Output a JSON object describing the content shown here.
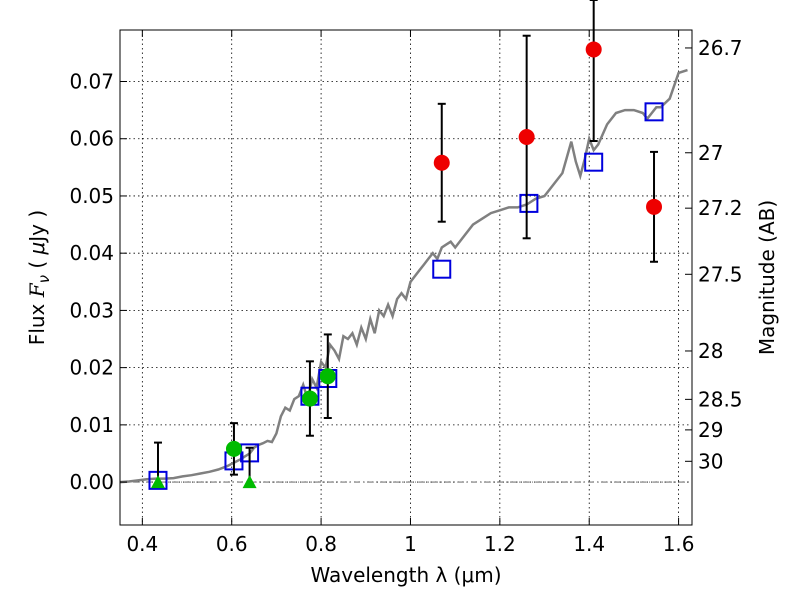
{
  "chart_data": {
    "type": "scatter",
    "xlabel": "Wavelength  λ (μm)",
    "ylabel": "Flux  F_ν  ( μJy )",
    "ylabel_parts": {
      "prefix": "Flux  ",
      "symbol": "F",
      "subscript": "ν",
      "paren_open": "  ( ",
      "mu": "μ",
      "unit": "Jy )"
    },
    "y2label": "Magnitude (AB)",
    "xlim": [
      0.35,
      1.63
    ],
    "ylim": [
      -0.0075,
      0.079
    ],
    "grid": true,
    "x_ticks": [
      {
        "value": 0.4,
        "label": "0.4"
      },
      {
        "value": 0.6,
        "label": "0.6"
      },
      {
        "value": 0.8,
        "label": "0.8"
      },
      {
        "value": 1.0,
        "label": "1"
      },
      {
        "value": 1.2,
        "label": "1.2"
      },
      {
        "value": 1.4,
        "label": "1.4"
      },
      {
        "value": 1.6,
        "label": "1.6"
      }
    ],
    "y_ticks": [
      {
        "value": 0.0,
        "label": "0.00"
      },
      {
        "value": 0.01,
        "label": "0.01"
      },
      {
        "value": 0.02,
        "label": "0.02"
      },
      {
        "value": 0.03,
        "label": "0.03"
      },
      {
        "value": 0.04,
        "label": "0.04"
      },
      {
        "value": 0.05,
        "label": "0.05"
      },
      {
        "value": 0.06,
        "label": "0.06"
      },
      {
        "value": 0.07,
        "label": "0.07"
      }
    ],
    "y2_ticks": [
      {
        "mag": 26.7,
        "label": "26.7"
      },
      {
        "mag": 27.0,
        "label": "27"
      },
      {
        "mag": 27.2,
        "label": "27.2"
      },
      {
        "mag": 27.5,
        "label": "27.5"
      },
      {
        "mag": 28.0,
        "label": "28"
      },
      {
        "mag": 28.5,
        "label": "28.5"
      },
      {
        "mag": 29.0,
        "label": "29"
      },
      {
        "mag": 30.0,
        "label": "30"
      }
    ],
    "colors": {
      "model": "#808080",
      "model_fluxes": "#0000dd",
      "detections_red": "#ee0000",
      "detections_green": "#00bb00",
      "upper_limits": "#00bb00",
      "errorbars": "#000000",
      "zero_line": "#555555"
    },
    "model_spectrum": {
      "x": [
        0.35,
        0.37,
        0.39,
        0.41,
        0.43,
        0.45,
        0.47,
        0.49,
        0.51,
        0.53,
        0.55,
        0.57,
        0.59,
        0.6,
        0.61,
        0.62,
        0.63,
        0.64,
        0.65,
        0.66,
        0.67,
        0.68,
        0.69,
        0.7,
        0.71,
        0.72,
        0.73,
        0.74,
        0.75,
        0.76,
        0.77,
        0.78,
        0.79,
        0.8,
        0.81,
        0.82,
        0.83,
        0.84,
        0.85,
        0.86,
        0.87,
        0.88,
        0.89,
        0.9,
        0.91,
        0.92,
        0.93,
        0.94,
        0.95,
        0.96,
        0.97,
        0.98,
        0.99,
        1.0,
        1.01,
        1.02,
        1.03,
        1.04,
        1.05,
        1.06,
        1.07,
        1.08,
        1.09,
        1.1,
        1.12,
        1.14,
        1.16,
        1.18,
        1.2,
        1.22,
        1.24,
        1.26,
        1.28,
        1.3,
        1.32,
        1.34,
        1.36,
        1.37,
        1.38,
        1.39,
        1.4,
        1.41,
        1.42,
        1.44,
        1.46,
        1.48,
        1.5,
        1.52,
        1.53,
        1.54,
        1.55,
        1.56,
        1.58,
        1.6,
        1.62
      ],
      "y": [
        0.0,
        0.0001,
        0.0003,
        0.0005,
        0.0006,
        0.0006,
        0.0007,
        0.001,
        0.0012,
        0.0015,
        0.0018,
        0.0022,
        0.0028,
        0.0032,
        0.0036,
        0.004,
        0.0045,
        0.005,
        0.006,
        0.0065,
        0.0068,
        0.0072,
        0.007,
        0.0085,
        0.0115,
        0.013,
        0.0125,
        0.0145,
        0.015,
        0.017,
        0.0145,
        0.018,
        0.0165,
        0.021,
        0.02,
        0.024,
        0.023,
        0.0215,
        0.0255,
        0.025,
        0.026,
        0.024,
        0.027,
        0.025,
        0.0285,
        0.026,
        0.03,
        0.029,
        0.031,
        0.029,
        0.032,
        0.033,
        0.032,
        0.035,
        0.036,
        0.037,
        0.038,
        0.039,
        0.04,
        0.039,
        0.041,
        0.0415,
        0.042,
        0.041,
        0.043,
        0.045,
        0.046,
        0.047,
        0.0475,
        0.048,
        0.048,
        0.0485,
        0.0495,
        0.05,
        0.052,
        0.054,
        0.0595,
        0.056,
        0.0535,
        0.0565,
        0.06,
        0.058,
        0.059,
        0.0625,
        0.0645,
        0.065,
        0.065,
        0.0645,
        0.0635,
        0.0645,
        0.0655,
        0.0655,
        0.067,
        0.0715,
        0.072
      ]
    },
    "model_fluxes": {
      "x": [
        0.435,
        0.605,
        0.64,
        0.775,
        0.815,
        1.07,
        1.265,
        1.41,
        1.545
      ],
      "y": [
        0.0003,
        0.0037,
        0.0051,
        0.015,
        0.0181,
        0.0372,
        0.0487,
        0.0559,
        0.0647
      ]
    },
    "detections": [
      {
        "x": 0.605,
        "y": 0.0058,
        "err": 0.0045,
        "color": "green"
      },
      {
        "x": 0.775,
        "y": 0.0146,
        "err": 0.0065,
        "color": "green"
      },
      {
        "x": 0.815,
        "y": 0.0185,
        "err": 0.0073,
        "color": "green"
      },
      {
        "x": 1.07,
        "y": 0.0558,
        "err": 0.0103,
        "color": "red"
      },
      {
        "x": 1.26,
        "y": 0.0603,
        "err": 0.0177,
        "color": "red"
      },
      {
        "x": 1.41,
        "y": 0.0756,
        "err": 0.016,
        "color": "red"
      },
      {
        "x": 1.545,
        "y": 0.0481,
        "err": 0.0096,
        "color": "red"
      }
    ],
    "upper_limits": [
      {
        "x": 0.435,
        "y": 0.0,
        "err_up": 0.0069
      },
      {
        "x": 0.64,
        "y": 0.0,
        "err_up": 0.006
      }
    ]
  }
}
